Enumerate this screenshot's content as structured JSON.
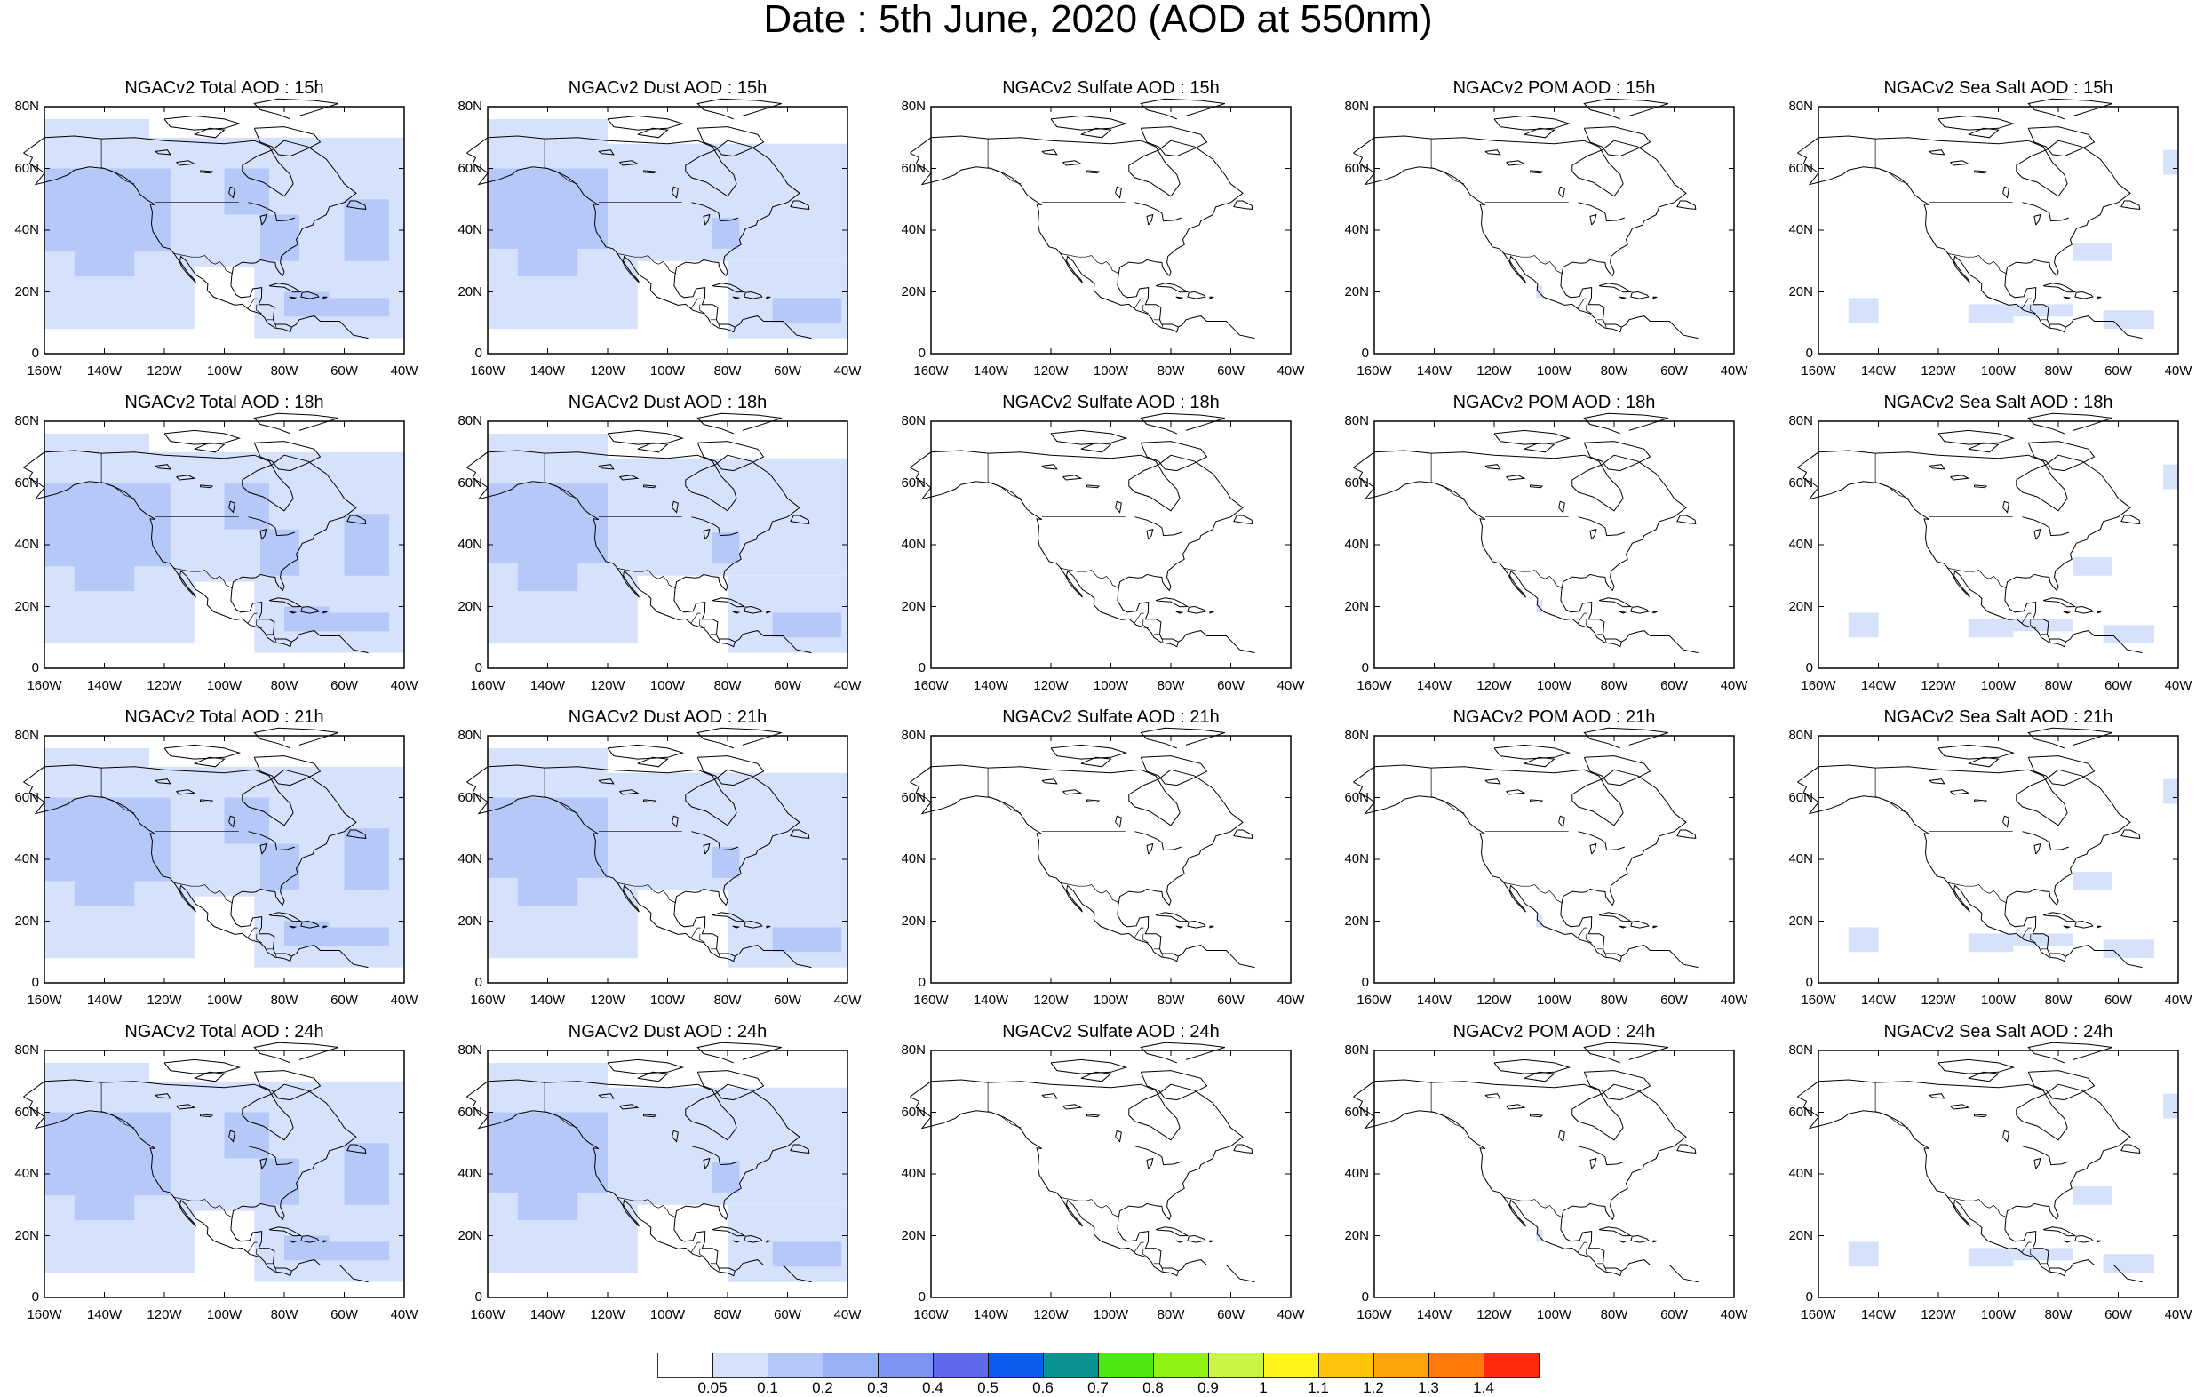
{
  "title": "Date : 5th June, 2020 (AOD at 550nm)",
  "panels": [
    [
      "NGACv2 Total AOD : 15h",
      "NGACv2 Dust AOD : 15h",
      "NGACv2 Sulfate AOD : 15h",
      "NGACv2 POM AOD : 15h",
      "NGACv2 Sea Salt AOD : 15h"
    ],
    [
      "NGACv2 Total AOD : 18h",
      "NGACv2 Dust AOD : 18h",
      "NGACv2 Sulfate AOD : 18h",
      "NGACv2 POM AOD : 18h",
      "NGACv2 Sea Salt AOD : 18h"
    ],
    [
      "NGACv2 Total AOD : 21h",
      "NGACv2 Dust AOD : 21h",
      "NGACv2 Sulfate AOD : 21h",
      "NGACv2 POM AOD : 21h",
      "NGACv2 Sea Salt AOD : 21h"
    ],
    [
      "NGACv2 Total AOD : 24h",
      "NGACv2 Dust AOD : 24h",
      "NGACv2 Sulfate AOD : 24h",
      "NGACv2 POM AOD : 24h",
      "NGACv2 Sea Salt  AOD : 24h"
    ]
  ],
  "panel_types": [
    "total",
    "dust",
    "sulfate",
    "pom",
    "seasalt"
  ],
  "lat_labels": [
    "80N",
    "60N",
    "40N",
    "20N",
    "0"
  ],
  "lon_labels": [
    "160W",
    "140W",
    "120W",
    "100W",
    "80W",
    "60W",
    "40W"
  ],
  "colorbar": {
    "labels": [
      "0.05",
      "0.1",
      "0.2",
      "0.3",
      "0.4",
      "0.5",
      "0.6",
      "0.7",
      "0.8",
      "0.9",
      "1",
      "1.1",
      "1.2",
      "1.3",
      "1.4"
    ],
    "colors": [
      "#ffffff",
      "#d6e2fb",
      "#b5c8f8",
      "#97b0f6",
      "#7b93f2",
      "#6068ec",
      "#0a5cf0",
      "#0a9393",
      "#4fe814",
      "#8ff214",
      "#c9f545",
      "#fff51c",
      "#ffc30a",
      "#ffa30a",
      "#ff7a0a",
      "#ff2a0a"
    ]
  }
}
